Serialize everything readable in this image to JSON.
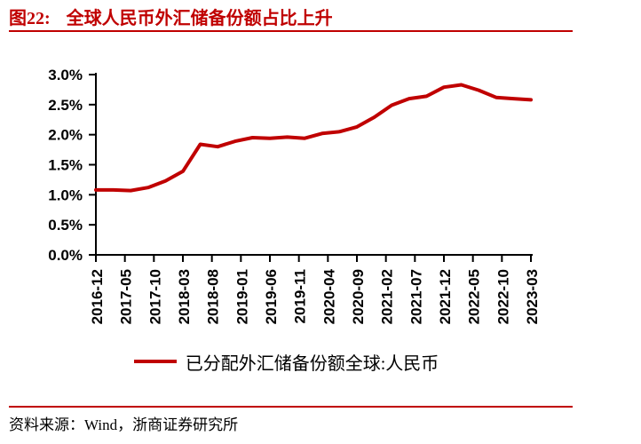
{
  "title": {
    "prefix": "图22:",
    "text": "全球人民币外汇储备份额占比上升"
  },
  "legend": {
    "label": "已分配外汇储备份额全球:人民币"
  },
  "source": {
    "text": "资料来源：Wind，浙商证券研究所"
  },
  "colors": {
    "accent": "#C00000",
    "axis": "#000000",
    "text": "#000000"
  },
  "chart_data": {
    "type": "line",
    "title": "全球人民币外汇储备份额占比上升",
    "xlabel": "",
    "ylabel": "",
    "unit": "%",
    "ylim": [
      0,
      3
    ],
    "grid": false,
    "legend_position": "bottom",
    "y_tick_labels": [
      "3.0%",
      "2.5%",
      "2.0%",
      "1.5%",
      "1.0%",
      "0.5%",
      "0.0%"
    ],
    "y_tick_values": [
      3.0,
      2.5,
      2.0,
      1.5,
      1.0,
      0.5,
      0.0
    ],
    "x_tick_labels": [
      "2016-12",
      "2017-05",
      "2017-10",
      "2018-03",
      "2018-08",
      "2019-01",
      "2019-06",
      "2019-11",
      "2020-04",
      "2020-09",
      "2021-02",
      "2021-07",
      "2021-12",
      "2022-05",
      "2022-10",
      "2023-03"
    ],
    "series": [
      {
        "name": "已分配外汇储备份额全球:人民币",
        "color": "#C00000",
        "x": [
          "2016-12",
          "2017-03",
          "2017-06",
          "2017-09",
          "2017-12",
          "2018-03",
          "2018-06",
          "2018-09",
          "2018-12",
          "2019-03",
          "2019-06",
          "2019-09",
          "2019-12",
          "2020-03",
          "2020-06",
          "2020-09",
          "2020-12",
          "2021-03",
          "2021-06",
          "2021-09",
          "2021-12",
          "2022-03",
          "2022-06",
          "2022-09",
          "2022-12",
          "2023-03"
        ],
        "values": [
          1.08,
          1.08,
          1.07,
          1.12,
          1.23,
          1.39,
          1.84,
          1.8,
          1.89,
          1.95,
          1.94,
          1.96,
          1.94,
          2.02,
          2.05,
          2.13,
          2.29,
          2.49,
          2.6,
          2.64,
          2.79,
          2.83,
          2.74,
          2.62,
          2.6,
          2.58
        ]
      }
    ]
  }
}
